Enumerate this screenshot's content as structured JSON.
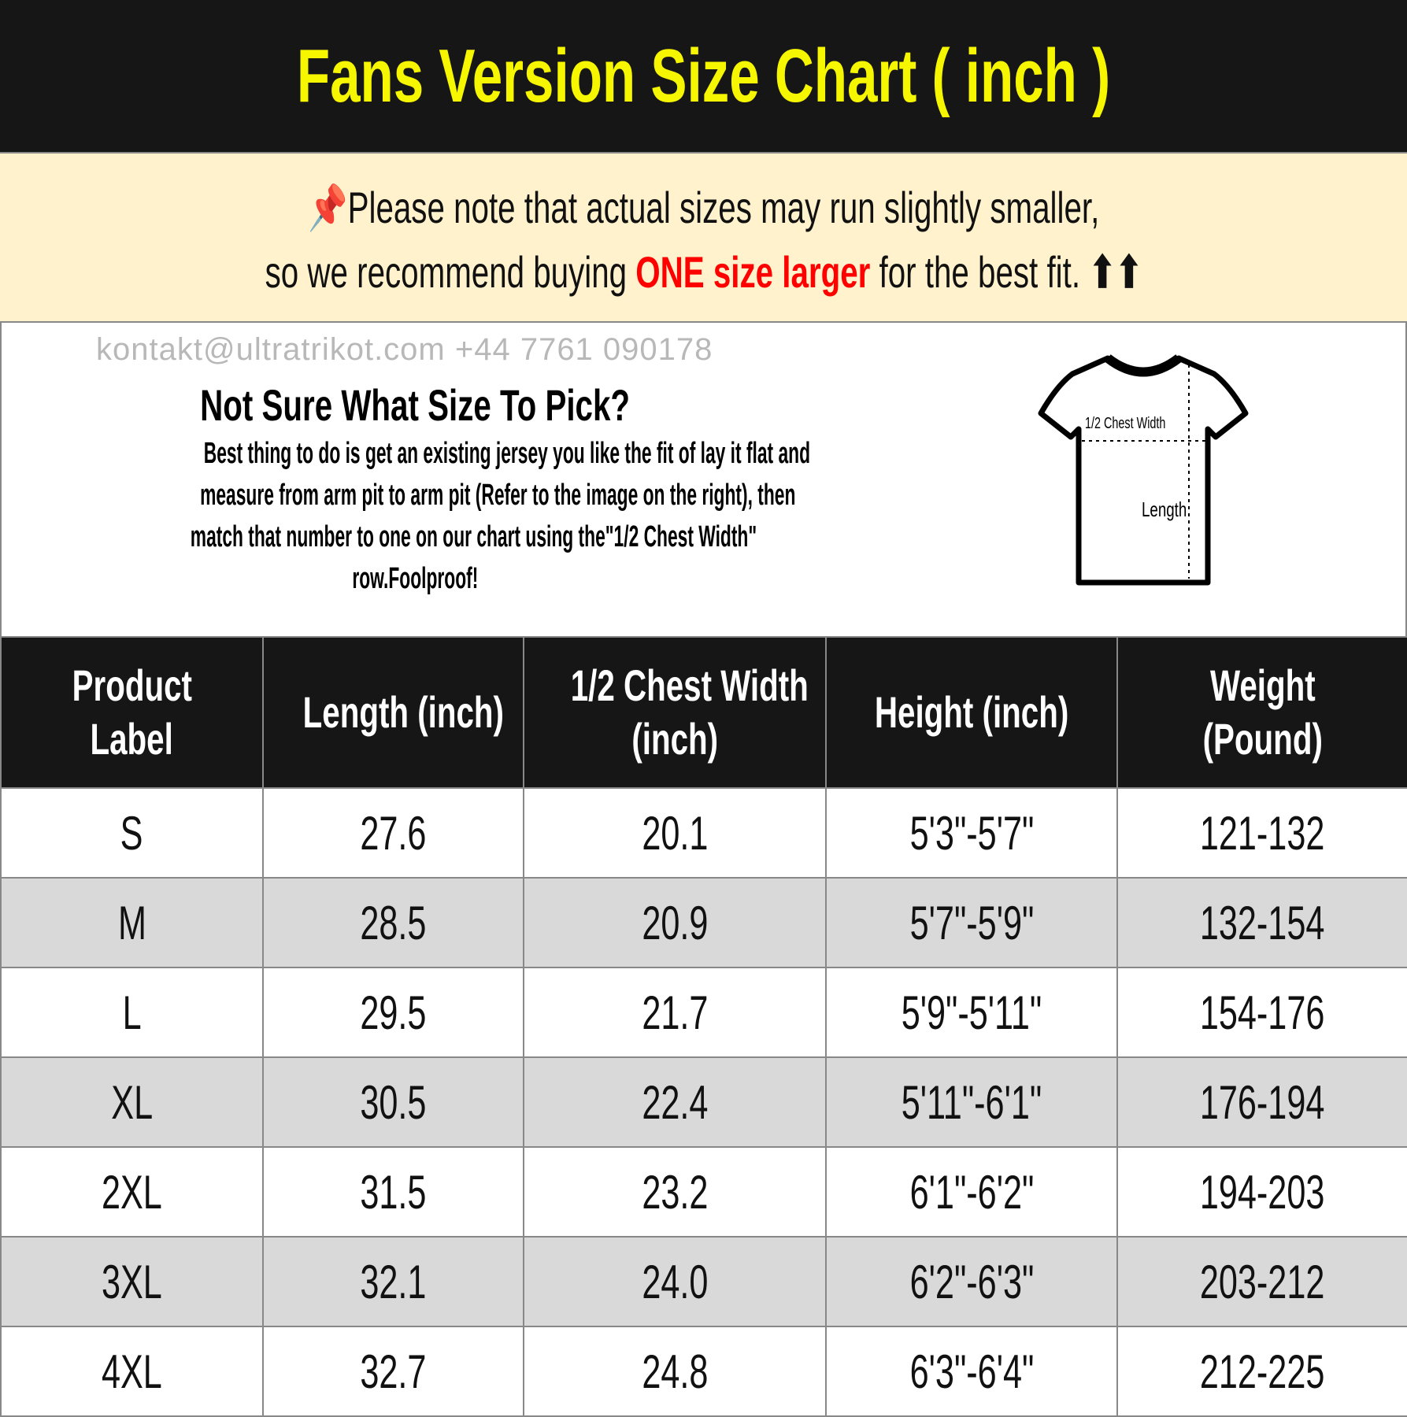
{
  "title": "Fans Version Size Chart ( inch )",
  "note": {
    "icon": "pushpin-icon",
    "line1": "Please note that actual sizes may run slightly smaller,",
    "line2_pre": "so we recommend buying ",
    "line2_em": "ONE size larger",
    "line2_post": " for the best fit.",
    "arrows": "⬆⬆"
  },
  "info": {
    "title": "Not Sure What Size To Pick?",
    "lines": [
      "Best thing to do is get an existing jersey you like the fit of lay it flat and",
      "measure from arm pit to arm pit (Refer to the image on the right), then",
      "match that number to one on our chart using the\"1/2 Chest Width\"",
      "row.Foolproof!"
    ],
    "diagram": {
      "chest_label": "1/2 Chest Width",
      "length_label": "Length"
    }
  },
  "table": {
    "headers": [
      [
        "Product",
        "Label"
      ],
      [
        "Length (inch)"
      ],
      [
        "1/2 Chest Width",
        "(inch)"
      ],
      [
        "Height (inch)"
      ],
      [
        "Weight",
        "(Pound)"
      ]
    ],
    "rows": [
      [
        "S",
        "27.6",
        "20.1",
        "5'3\"-5'7\"",
        "121-132"
      ],
      [
        "M",
        "28.5",
        "20.9",
        "5'7\"-5'9\"",
        "132-154"
      ],
      [
        "L",
        "29.5",
        "21.7",
        "5'9\"-5'11\"",
        "154-176"
      ],
      [
        "XL",
        "30.5",
        "22.4",
        "5'11\"-6'1\"",
        "176-194"
      ],
      [
        "2XL",
        "31.5",
        "23.2",
        "6'1\"-6'2\"",
        "194-203"
      ],
      [
        "3XL",
        "32.1",
        "24.0",
        "6'2\"-6'3\"",
        "203-212"
      ],
      [
        "4XL",
        "32.7",
        "24.8",
        "6'3\"-6'4\"",
        "212-225"
      ]
    ]
  },
  "watermark": "kontakt@ultratrikot.com   +44 7761 090178",
  "colors": {
    "title": "#f6f600",
    "header_bg": "#161616",
    "note_bg": "#fff2cc",
    "accent": "#ff0000",
    "alt_row": "#d9d9d9"
  }
}
